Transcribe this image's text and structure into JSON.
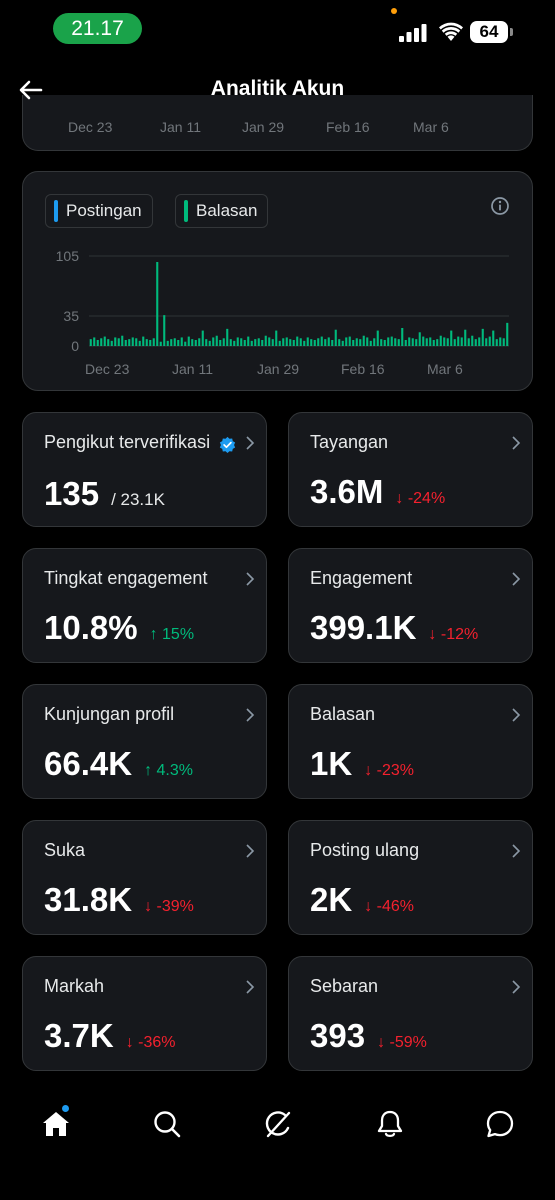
{
  "status_bar": {
    "time": "21.17",
    "battery": "64"
  },
  "header": {
    "title": "Analitik Akun"
  },
  "top_chart": {
    "dates": [
      "Dec 23",
      "Jan 11",
      "Jan 29",
      "Feb 16",
      "Mar 6"
    ]
  },
  "legend": {
    "posts": "Postingan",
    "replies": "Balasan"
  },
  "colors": {
    "posts": "#1d9bf0",
    "replies": "#00ba7c",
    "up": "#00ba7c",
    "down": "#f4212e",
    "verified": "#1d9bf0"
  },
  "chart_data": {
    "type": "bar",
    "x_tick_labels": [
      "Dec 23",
      "Jan 11",
      "Jan 29",
      "Feb 16",
      "Mar 6"
    ],
    "y_tick_labels": [
      "105",
      "35",
      "0"
    ],
    "ylim": [
      0,
      105
    ],
    "grid": true,
    "series": [
      {
        "name": "Postingan",
        "values": [
          0,
          0,
          0,
          0,
          0,
          0,
          0,
          0,
          0,
          0,
          0,
          0,
          0,
          0,
          0,
          0,
          0,
          0,
          0,
          0,
          0,
          0,
          0,
          0,
          0,
          0,
          0,
          0,
          0,
          0,
          0,
          0,
          0,
          0,
          0,
          0,
          0,
          0,
          0,
          0,
          0,
          0,
          0,
          0,
          0,
          0,
          0,
          0,
          0,
          0,
          0,
          0,
          0,
          0,
          0,
          0,
          0,
          0,
          0,
          0,
          0,
          0,
          0,
          0,
          0,
          0,
          0,
          0,
          0,
          0,
          0,
          0,
          0,
          0,
          0,
          0,
          0,
          0,
          0,
          0,
          0,
          0,
          0,
          0,
          0,
          0,
          0,
          0,
          0,
          0,
          0,
          0,
          0,
          0,
          0,
          0,
          0,
          0,
          0,
          0,
          0,
          0,
          0,
          0,
          0,
          0,
          0,
          0,
          0,
          0,
          0,
          0,
          0,
          0,
          0,
          0,
          0,
          0,
          0,
          0
        ]
      },
      {
        "name": "Balasan",
        "values": [
          8,
          10,
          7,
          9,
          11,
          8,
          6,
          10,
          9,
          12,
          7,
          8,
          10,
          9,
          6,
          11,
          8,
          7,
          9,
          98,
          5,
          36,
          6,
          8,
          9,
          7,
          10,
          5,
          11,
          8,
          7,
          9,
          18,
          8,
          6,
          10,
          12,
          7,
          9,
          20,
          8,
          6,
          10,
          9,
          7,
          11,
          6,
          8,
          9,
          7,
          12,
          10,
          8,
          18,
          6,
          9,
          10,
          8,
          7,
          11,
          9,
          6,
          10,
          8,
          7,
          9,
          11,
          8,
          10,
          7,
          19,
          8,
          6,
          10,
          11,
          7,
          9,
          8,
          12,
          10,
          6,
          9,
          18,
          8,
          7,
          10,
          11,
          9,
          8,
          21,
          7,
          10,
          9,
          8,
          16,
          11,
          9,
          10,
          7,
          8,
          12,
          10,
          9,
          18,
          8,
          11,
          10,
          19,
          9,
          12,
          8,
          10,
          20,
          9,
          11,
          18,
          8,
          10,
          9,
          27
        ]
      }
    ]
  },
  "metrics": [
    {
      "label": "Pengikut terverifikasi",
      "value": "135",
      "total": "/ 23.1K",
      "change": ""
    },
    {
      "label": "Tayangan",
      "value": "3.6M",
      "change": "↓ -24%"
    },
    {
      "label": "Tingkat engagement",
      "value": "10.8%",
      "change": "↑ 15%"
    },
    {
      "label": "Engagement",
      "value": "399.1K",
      "change": "↓ -12%"
    },
    {
      "label": "Kunjungan profil",
      "value": "66.4K",
      "change": "↑ 4.3%"
    },
    {
      "label": "Balasan",
      "value": "1K",
      "change": "↓ -23%"
    },
    {
      "label": "Suka",
      "value": "31.8K",
      "change": "↓ -39%"
    },
    {
      "label": "Posting ulang",
      "value": "2K",
      "change": "↓ -46%"
    },
    {
      "label": "Markah",
      "value": "3.7K",
      "change": "↓ -36%"
    },
    {
      "label": "Sebaran",
      "value": "393",
      "change": "↓ -59%"
    }
  ],
  "nav": {
    "icons": [
      "home-icon",
      "search-icon",
      "grok-icon",
      "notifications-icon",
      "messages-icon"
    ]
  }
}
